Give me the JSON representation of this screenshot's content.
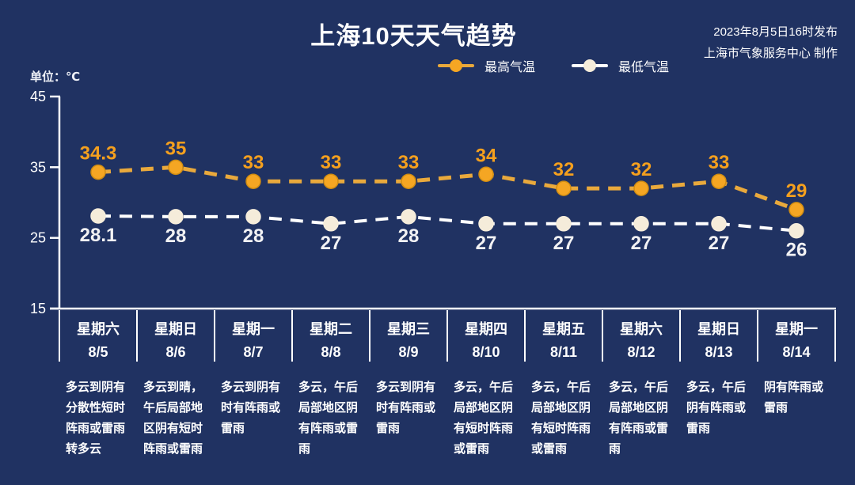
{
  "header": {
    "title": "上海10天天气趋势",
    "issued_line1": "2023年8月5日16时发布",
    "issued_line2": "上海市气象服务中心 制作",
    "unit_label": "单位：℃"
  },
  "colors": {
    "background": "#203262",
    "text": "#ffffff",
    "high_marker": "#f5a623",
    "high_line": "#e9a93c",
    "high_label": "#f5a01e",
    "high_marker_stroke": "#d18d12",
    "low_marker": "#f5ecda",
    "low_line": "#ffffff",
    "low_label": "#f2f2f4"
  },
  "chart_data": {
    "type": "line",
    "title": "上海10天天气趋势",
    "unit": "℃",
    "ylim": [
      15,
      45
    ],
    "yticks": [
      45,
      35,
      25,
      15
    ],
    "grid": false,
    "legend_position": "top",
    "x_categories": [
      {
        "weekday": "星期六",
        "date": "8/5",
        "forecast": "多云到阴有分散性短时阵雨或雷雨转多云"
      },
      {
        "weekday": "星期日",
        "date": "8/6",
        "forecast": "多云到晴，午后局部地区阴有短时阵雨或雷雨"
      },
      {
        "weekday": "星期一",
        "date": "8/7",
        "forecast": "多云到阴有时有阵雨或雷雨"
      },
      {
        "weekday": "星期二",
        "date": "8/8",
        "forecast": "多云，午后局部地区阴有阵雨或雷雨"
      },
      {
        "weekday": "星期三",
        "date": "8/9",
        "forecast": "多云到阴有时有阵雨或雷雨"
      },
      {
        "weekday": "星期四",
        "date": "8/10",
        "forecast": "多云，午后局部地区阴有短时阵雨或雷雨"
      },
      {
        "weekday": "星期五",
        "date": "8/11",
        "forecast": "多云，午后局部地区阴有短时阵雨或雷雨"
      },
      {
        "weekday": "星期六",
        "date": "8/12",
        "forecast": "多云，午后局部地区阴有阵雨或雷雨"
      },
      {
        "weekday": "星期日",
        "date": "8/13",
        "forecast": "多云，午后阴有阵雨或雷雨"
      },
      {
        "weekday": "星期一",
        "date": "8/14",
        "forecast": "阴有阵雨或雷雨"
      }
    ],
    "series": [
      {
        "key": "high",
        "name": "最高气温",
        "values": [
          34.3,
          35,
          33,
          33,
          33,
          34,
          32,
          32,
          33,
          29
        ],
        "line_color": "#e9a93c",
        "marker_color": "#f5a623",
        "marker_stroke": "#d18d12",
        "label_color": "#f5a01e",
        "label_position": "above"
      },
      {
        "key": "low",
        "name": "最低气温",
        "values": [
          28.1,
          28,
          28,
          27,
          28,
          27,
          27,
          27,
          27,
          26
        ],
        "line_color": "#ffffff",
        "marker_color": "#f5ecda",
        "marker_stroke": "#f5ecda",
        "label_color": "#f2f2f4",
        "label_position": "below"
      }
    ]
  }
}
